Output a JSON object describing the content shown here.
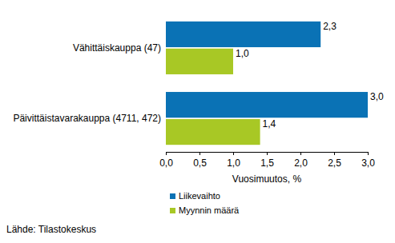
{
  "chart_data": {
    "type": "bar",
    "orientation": "horizontal",
    "categories": [
      "Vähittäiskauppa (47)",
      "Päivittäistavarakauppa (4711, 472)"
    ],
    "series": [
      {
        "name": "Liikevaihto",
        "color": "#0a72b5",
        "values": [
          2.3,
          3.0
        ],
        "value_labels": [
          "2,3",
          "3,0"
        ]
      },
      {
        "name": "Myynnin määrä",
        "color": "#a8c825",
        "values": [
          1.0,
          1.4
        ],
        "value_labels": [
          "1,0",
          "1,4"
        ]
      }
    ],
    "x_label": "Vuosimuutos, %",
    "source": "Lähde: Tilastokeskus",
    "xlim": [
      0,
      3.0
    ],
    "xticks": [
      {
        "value": 0,
        "label": "0,0"
      },
      {
        "value": 0.5,
        "label": "0,5"
      },
      {
        "value": 1.0,
        "label": "1,0"
      },
      {
        "value": 1.5,
        "label": "1,5"
      },
      {
        "value": 2.0,
        "label": "2,0"
      },
      {
        "value": 2.5,
        "label": "2,5"
      },
      {
        "value": 3.0,
        "label": "3,0"
      }
    ],
    "grid": false,
    "data_labels": true,
    "legend": "bottom"
  }
}
